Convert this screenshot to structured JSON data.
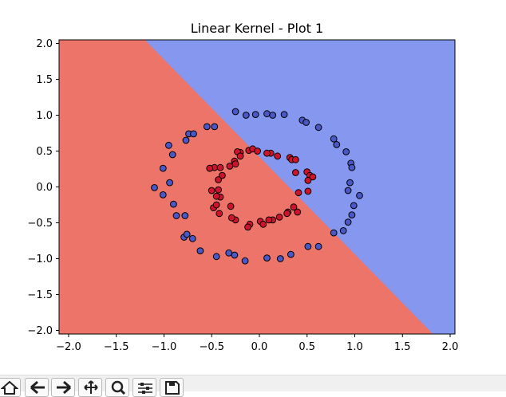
{
  "window": {
    "title": "Linear Kernel - Plot 1"
  },
  "toolbar": {
    "buttons": [
      {
        "name": "home",
        "icon": "home-icon"
      },
      {
        "name": "back",
        "icon": "arrow-left-icon"
      },
      {
        "name": "forward",
        "icon": "arrow-right-icon"
      },
      {
        "name": "pan",
        "icon": "move-icon"
      },
      {
        "name": "zoom",
        "icon": "zoom-icon"
      },
      {
        "name": "configure-subplots",
        "icon": "sliders-icon"
      },
      {
        "name": "save",
        "icon": "save-icon"
      }
    ]
  },
  "chart_data": {
    "type": "scatter",
    "title": "Linear Kernel - Plot 1",
    "xlabel": "",
    "ylabel": "",
    "xlim": [
      -2.1,
      2.05
    ],
    "ylim": [
      -2.05,
      2.05
    ],
    "xticks": [
      -2.0,
      -1.5,
      -1.0,
      -0.5,
      0.0,
      0.5,
      1.0,
      1.5,
      2.0
    ],
    "yticks": [
      -2.0,
      -1.5,
      -1.0,
      -0.5,
      0.0,
      0.5,
      1.0,
      1.5,
      2.0
    ],
    "xtick_labels": [
      "−2.0",
      "−1.5",
      "−1.0",
      "−0.5",
      "0.0",
      "0.5",
      "1.0",
      "1.5",
      "2.0"
    ],
    "ytick_labels": [
      "−2.0",
      "−1.5",
      "−1.0",
      "−0.5",
      "0.0",
      "0.5",
      "1.0",
      "1.5",
      "2.0"
    ],
    "decision_regions": {
      "boundary_points": [
        [
          -1.2,
          2.05
        ],
        [
          1.82,
          -2.05
        ]
      ],
      "colors": {
        "class_0": "#ed7468",
        "class_1": "#8597ef"
      }
    },
    "series": [
      {
        "class": "outer",
        "color": "#4a57c6",
        "points": [
          [
            -0.47,
            0.84
          ],
          [
            -0.25,
            1.05
          ],
          [
            -0.14,
            1.0
          ],
          [
            -0.04,
            1.01
          ],
          [
            0.08,
            1.02
          ],
          [
            0.14,
            1.0
          ],
          [
            0.26,
            1.01
          ],
          [
            0.45,
            0.93
          ],
          [
            0.49,
            0.9
          ],
          [
            0.62,
            0.83
          ],
          [
            0.78,
            0.67
          ],
          [
            0.81,
            0.59
          ],
          [
            0.91,
            0.49
          ],
          [
            0.96,
            0.33
          ],
          [
            0.97,
            0.27
          ],
          [
            1.05,
            -0.12
          ],
          [
            0.95,
            0.06
          ],
          [
            0.93,
            -0.05
          ],
          [
            0.99,
            -0.26
          ],
          [
            0.97,
            -0.39
          ],
          [
            0.93,
            -0.49
          ],
          [
            0.88,
            -0.61
          ],
          [
            0.78,
            -0.64
          ],
          [
            0.62,
            -0.83
          ],
          [
            0.51,
            -0.83
          ],
          [
            0.33,
            -0.94
          ],
          [
            0.22,
            -1.0
          ],
          [
            0.08,
            -0.99
          ],
          [
            -0.15,
            -1.03
          ],
          [
            -0.26,
            -0.95
          ],
          [
            -0.32,
            -0.92
          ],
          [
            -0.45,
            -0.97
          ],
          [
            -0.62,
            -0.89
          ],
          [
            -0.7,
            -0.72
          ],
          [
            -0.79,
            -0.7
          ],
          [
            -0.76,
            -0.66
          ],
          [
            -0.87,
            -0.4
          ],
          [
            -0.78,
            -0.4
          ],
          [
            -0.9,
            -0.24
          ],
          [
            -1.01,
            -0.11
          ],
          [
            -0.94,
            0.06
          ],
          [
            -1.1,
            -0.01
          ],
          [
            -1.01,
            0.26
          ],
          [
            -0.91,
            0.45
          ],
          [
            -0.95,
            0.58
          ],
          [
            -0.77,
            0.65
          ],
          [
            -0.74,
            0.74
          ],
          [
            -0.69,
            0.74
          ],
          [
            -0.55,
            0.84
          ]
        ]
      },
      {
        "class": "inner",
        "color": "#d0132b",
        "points": [
          [
            -0.47,
            0.27
          ],
          [
            -0.52,
            0.26
          ],
          [
            -0.41,
            0.27
          ],
          [
            -0.31,
            0.29
          ],
          [
            -0.39,
            0.16
          ],
          [
            -0.26,
            0.36
          ],
          [
            -0.2,
            0.48
          ],
          [
            -0.23,
            0.49
          ],
          [
            -0.11,
            0.51
          ],
          [
            -0.07,
            0.53
          ],
          [
            0.12,
            0.47
          ],
          [
            0.19,
            0.43
          ],
          [
            0.08,
            0.47
          ],
          [
            0.32,
            0.41
          ],
          [
            0.34,
            0.38
          ],
          [
            0.38,
            0.38
          ],
          [
            0.38,
            0.2
          ],
          [
            0.5,
            0.21
          ],
          [
            0.53,
            0.16
          ],
          [
            0.56,
            0.14
          ],
          [
            0.51,
            0.09
          ],
          [
            0.51,
            -0.06
          ],
          [
            0.41,
            -0.08
          ],
          [
            0.36,
            -0.28
          ],
          [
            0.4,
            -0.35
          ],
          [
            0.3,
            -0.35
          ],
          [
            0.29,
            -0.37
          ],
          [
            0.21,
            -0.42
          ],
          [
            0.14,
            -0.46
          ],
          [
            0.1,
            -0.46
          ],
          [
            0.01,
            -0.48
          ],
          [
            0.04,
            -0.52
          ],
          [
            -0.1,
            -0.52
          ],
          [
            -0.12,
            -0.56
          ],
          [
            -0.25,
            -0.46
          ],
          [
            -0.29,
            -0.43
          ],
          [
            -0.3,
            -0.27
          ],
          [
            -0.41,
            -0.14
          ],
          [
            -0.43,
            -0.04
          ],
          [
            -0.42,
            -0.37
          ],
          [
            -0.48,
            -0.29
          ],
          [
            -0.45,
            -0.25
          ],
          [
            -0.5,
            -0.05
          ],
          [
            -0.45,
            -0.13
          ],
          [
            -0.43,
            0.1
          ],
          [
            -0.25,
            0.32
          ],
          [
            -0.2,
            0.43
          ],
          [
            -0.02,
            0.5
          ]
        ]
      }
    ]
  }
}
